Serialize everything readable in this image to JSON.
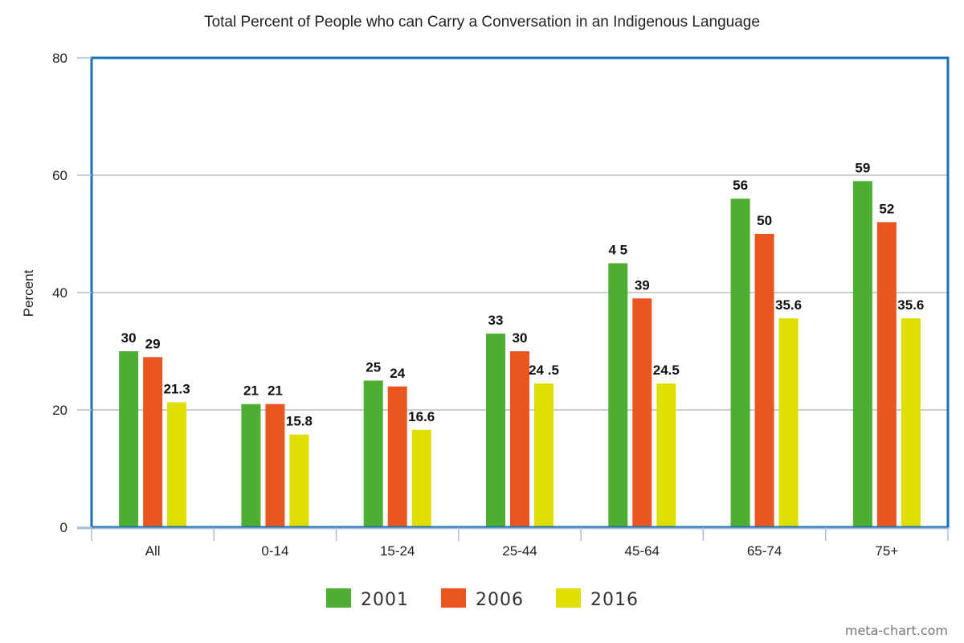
{
  "chart_data": {
    "type": "bar",
    "title": "Total Percent of People who can Carry a Conversation in an Indigenous Language",
    "xlabel": "",
    "ylabel": "Percent",
    "ylim": [
      0,
      80
    ],
    "yticks": [
      0,
      20,
      40,
      60,
      80
    ],
    "grid": true,
    "legend_position": "bottom-center",
    "categories": [
      "All",
      "0-14",
      "15-24",
      "25-44",
      "45-64",
      "65-74",
      "75+"
    ],
    "series": [
      {
        "name": "2001",
        "color": "#4caf32",
        "values": [
          30,
          21,
          25,
          33,
          45,
          56,
          59
        ],
        "labels": [
          "30",
          "21",
          "25",
          "33",
          "4 5",
          "56",
          "59"
        ]
      },
      {
        "name": "2006",
        "color": "#ea5520",
        "values": [
          29,
          21,
          24,
          30,
          39,
          50,
          52
        ],
        "labels": [
          "29",
          "21",
          "24",
          "30",
          "39",
          "50",
          "52"
        ]
      },
      {
        "name": "2016",
        "color": "#dede00",
        "values": [
          21.3,
          15.8,
          16.6,
          24.5,
          24.5,
          35.6,
          35.6
        ],
        "labels": [
          "21.3",
          "15.8",
          "16.6",
          "24 .5",
          "24.5",
          "35.6",
          "35.6"
        ]
      }
    ]
  },
  "colors": {
    "frame": "#1a6fb5",
    "grid": "#b9bec4",
    "axis": "#a8c0d6"
  },
  "watermark": "meta-chart.com"
}
